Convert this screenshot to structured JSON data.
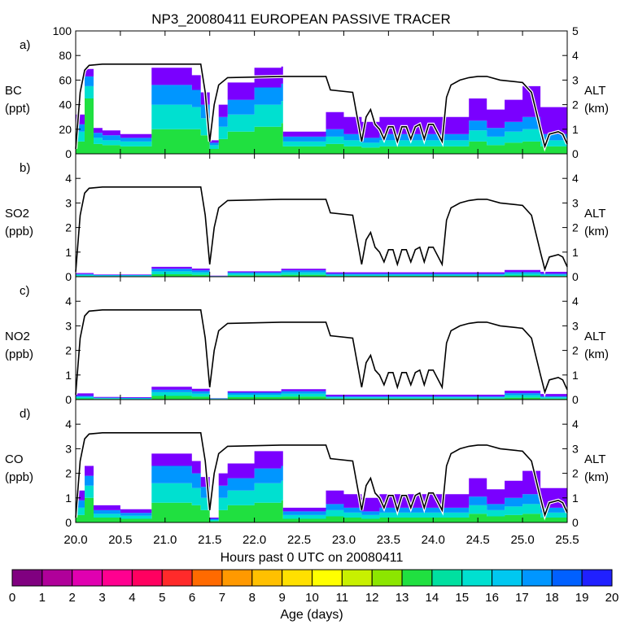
{
  "title": "NP3_20080411 EUROPEAN PASSIVE TRACER",
  "x_axis": {
    "label": "Hours past 0 UTC on 20080411",
    "range": [
      20.0,
      25.5
    ],
    "ticks": [
      "20.0",
      "20.5",
      "21.0",
      "21.5",
      "22.0",
      "22.5",
      "23.0",
      "23.5",
      "24.0",
      "24.5",
      "25.0",
      "25.5"
    ]
  },
  "right_axis": {
    "label": "ALT",
    "unit": "(km)",
    "range": [
      0,
      5
    ],
    "ticks": [
      "0",
      "1",
      "2",
      "3",
      "4",
      "5"
    ]
  },
  "colorbar": {
    "label": "Age (days)",
    "ticks": [
      "0",
      "1",
      "2",
      "3",
      "4",
      "5",
      "6",
      "7",
      "8",
      "9",
      "10",
      "11",
      "12",
      "13",
      "14",
      "15",
      "16",
      "17",
      "18",
      "19",
      "20"
    ],
    "colors": [
      "#800080",
      "#b0009a",
      "#e000b0",
      "#ff0090",
      "#ff0060",
      "#ff2a2a",
      "#ff6a00",
      "#ff9900",
      "#ffc000",
      "#ffe000",
      "#ffff00",
      "#c8f000",
      "#8ce600",
      "#20e040",
      "#00e0a0",
      "#00e0d0",
      "#00c8f0",
      "#0096ff",
      "#0060ff",
      "#2020ff",
      "#7a00ff"
    ]
  },
  "chart_data": [
    {
      "type": "area",
      "panel": "a)",
      "species": "BC",
      "unit": "(ppt)",
      "ylim": [
        0,
        100
      ],
      "yticks": [
        "0",
        "20",
        "40",
        "60",
        "80",
        "100"
      ],
      "altitude_km_series": {
        "x": [
          20.0,
          20.05,
          20.1,
          20.15,
          20.3,
          21.4,
          21.45,
          21.5,
          21.55,
          21.6,
          21.7,
          22.3,
          22.8,
          22.85,
          23.1,
          23.2,
          23.25,
          23.3,
          23.35,
          23.4,
          23.45,
          23.5,
          23.55,
          23.6,
          23.65,
          23.7,
          23.75,
          23.8,
          23.85,
          23.9,
          23.95,
          24.0,
          24.1,
          24.15,
          24.2,
          24.3,
          24.4,
          24.5,
          24.6,
          24.75,
          25.0,
          25.1,
          25.2,
          25.25,
          25.3,
          25.4,
          25.45,
          25.5
        ],
        "y": [
          0.2,
          2.5,
          3.4,
          3.6,
          3.65,
          3.65,
          2.5,
          0.5,
          2.0,
          2.8,
          3.1,
          3.15,
          3.15,
          2.6,
          2.5,
          0.5,
          1.5,
          1.8,
          1.2,
          1.0,
          0.6,
          1.1,
          1.1,
          0.5,
          1.1,
          1.1,
          0.6,
          1.1,
          1.2,
          0.6,
          1.2,
          1.2,
          0.5,
          2.3,
          2.8,
          3.0,
          3.1,
          3.15,
          3.15,
          3.0,
          2.9,
          2.5,
          1.0,
          0.3,
          0.8,
          0.9,
          0.8,
          0.4
        ]
      },
      "x": [
        20.0,
        20.1,
        20.2,
        20.3,
        20.5,
        20.8,
        20.85,
        21.3,
        21.4,
        21.5,
        21.6,
        21.7,
        22.0,
        22.3,
        22.32,
        22.7,
        22.8,
        23.0,
        23.2,
        23.4,
        23.6,
        23.8,
        24.0,
        24.2,
        24.4,
        24.6,
        24.8,
        25.0,
        25.2,
        25.5
      ],
      "series": [
        {
          "age": "0-12",
          "values": [
            10,
            45,
            8,
            7,
            6,
            6,
            20,
            20,
            15,
            4,
            12,
            18,
            22,
            25,
            6,
            6,
            8,
            6,
            5,
            6,
            6,
            6,
            6,
            6,
            10,
            7,
            9,
            10,
            6,
            6
          ]
        },
        {
          "age": "12-15",
          "values": [
            8,
            10,
            5,
            4,
            4,
            4,
            20,
            18,
            14,
            3,
            10,
            14,
            18,
            18,
            4,
            4,
            6,
            5,
            4,
            5,
            5,
            5,
            5,
            5,
            9,
            7,
            9,
            10,
            5,
            5
          ]
        },
        {
          "age": "15-17",
          "values": [
            6,
            8,
            4,
            4,
            3,
            3,
            16,
            14,
            11,
            2,
            8,
            12,
            14,
            14,
            4,
            4,
            6,
            5,
            4,
            5,
            5,
            5,
            5,
            5,
            8,
            7,
            8,
            10,
            5,
            5
          ]
        },
        {
          "age": "17-20",
          "values": [
            8,
            6,
            4,
            4,
            3,
            3,
            14,
            12,
            10,
            2,
            10,
            14,
            16,
            14,
            4,
            4,
            14,
            14,
            13,
            14,
            14,
            14,
            14,
            14,
            18,
            15,
            18,
            25,
            22,
            22
          ]
        }
      ]
    },
    {
      "type": "area",
      "panel": "b)",
      "species": "SO2",
      "unit": "(ppb)",
      "ylim": [
        0,
        5
      ],
      "yticks": [
        "0",
        "1",
        "2",
        "3",
        "4"
      ],
      "altitude_km_series": {
        "x": [
          20.0,
          20.05,
          20.1,
          20.15,
          20.3,
          21.4,
          21.45,
          21.5,
          21.55,
          21.6,
          21.7,
          22.3,
          22.8,
          22.85,
          23.1,
          23.2,
          23.25,
          23.3,
          23.35,
          23.4,
          23.45,
          23.5,
          23.55,
          23.6,
          23.65,
          23.7,
          23.75,
          23.8,
          23.85,
          23.9,
          23.95,
          24.0,
          24.1,
          24.15,
          24.2,
          24.3,
          24.4,
          24.5,
          24.6,
          24.75,
          25.0,
          25.1,
          25.2,
          25.25,
          25.3,
          25.4,
          25.45,
          25.5
        ],
        "y": [
          0.2,
          2.5,
          3.4,
          3.6,
          3.65,
          3.65,
          2.5,
          0.5,
          2.0,
          2.8,
          3.1,
          3.15,
          3.15,
          2.6,
          2.5,
          0.5,
          1.5,
          1.8,
          1.2,
          1.0,
          0.6,
          1.1,
          1.1,
          0.5,
          1.1,
          1.1,
          0.6,
          1.1,
          1.2,
          0.6,
          1.2,
          1.2,
          0.5,
          2.3,
          2.8,
          3.0,
          3.1,
          3.15,
          3.15,
          3.0,
          2.9,
          2.5,
          1.0,
          0.3,
          0.8,
          0.9,
          0.8,
          0.4
        ]
      },
      "x": [
        20.0,
        20.2,
        20.5,
        20.85,
        21.3,
        21.5,
        21.7,
        22.3,
        22.8,
        23.5,
        24.2,
        24.8,
        25.2,
        25.5
      ],
      "series": [
        {
          "age": "0-12",
          "values": [
            0.03,
            0.02,
            0.02,
            0.1,
            0.08,
            0.01,
            0.06,
            0.08,
            0.03,
            0.03,
            0.03,
            0.05,
            0.03,
            0.03
          ]
        },
        {
          "age": "12-15",
          "values": [
            0.05,
            0.03,
            0.03,
            0.12,
            0.1,
            0.01,
            0.07,
            0.1,
            0.05,
            0.05,
            0.05,
            0.08,
            0.05,
            0.05
          ]
        },
        {
          "age": "15-17",
          "values": [
            0.03,
            0.02,
            0.02,
            0.1,
            0.08,
            0.01,
            0.05,
            0.08,
            0.04,
            0.04,
            0.04,
            0.06,
            0.04,
            0.04
          ]
        },
        {
          "age": "17-20",
          "values": [
            0.04,
            0.02,
            0.02,
            0.08,
            0.07,
            0.01,
            0.04,
            0.06,
            0.06,
            0.06,
            0.06,
            0.08,
            0.08,
            0.08
          ]
        }
      ]
    },
    {
      "type": "area",
      "panel": "c)",
      "species": "NO2",
      "unit": "(ppb)",
      "ylim": [
        0,
        5
      ],
      "yticks": [
        "0",
        "1",
        "2",
        "3",
        "4"
      ],
      "altitude_km_series": {
        "x": [
          20.0,
          20.05,
          20.1,
          20.15,
          20.3,
          21.4,
          21.45,
          21.5,
          21.55,
          21.6,
          21.7,
          22.3,
          22.8,
          22.85,
          23.1,
          23.2,
          23.25,
          23.3,
          23.35,
          23.4,
          23.45,
          23.5,
          23.55,
          23.6,
          23.65,
          23.7,
          23.75,
          23.8,
          23.85,
          23.9,
          23.95,
          24.0,
          24.1,
          24.15,
          24.2,
          24.3,
          24.4,
          24.5,
          24.6,
          24.75,
          25.0,
          25.1,
          25.2,
          25.25,
          25.3,
          25.4,
          25.45,
          25.5
        ],
        "y": [
          0.2,
          2.5,
          3.4,
          3.6,
          3.65,
          3.65,
          2.5,
          0.5,
          2.0,
          2.8,
          3.1,
          3.15,
          3.15,
          2.6,
          2.5,
          0.5,
          1.5,
          1.8,
          1.2,
          1.0,
          0.6,
          1.1,
          1.1,
          0.5,
          1.1,
          1.1,
          0.6,
          1.1,
          1.2,
          0.6,
          1.2,
          1.2,
          0.5,
          2.3,
          2.8,
          3.0,
          3.1,
          3.15,
          3.15,
          3.0,
          2.9,
          2.5,
          1.0,
          0.3,
          0.8,
          0.9,
          0.8,
          0.4
        ]
      },
      "x": [
        20.0,
        20.2,
        20.5,
        20.85,
        21.3,
        21.5,
        21.7,
        22.3,
        22.8,
        23.5,
        24.2,
        24.8,
        25.2,
        25.5
      ],
      "series": [
        {
          "age": "0-12",
          "values": [
            0.05,
            0.03,
            0.02,
            0.15,
            0.12,
            0.02,
            0.1,
            0.12,
            0.04,
            0.04,
            0.04,
            0.08,
            0.04,
            0.04
          ]
        },
        {
          "age": "12-15",
          "values": [
            0.06,
            0.03,
            0.03,
            0.15,
            0.12,
            0.02,
            0.1,
            0.12,
            0.05,
            0.05,
            0.05,
            0.1,
            0.05,
            0.05
          ]
        },
        {
          "age": "15-17",
          "values": [
            0.04,
            0.02,
            0.02,
            0.1,
            0.1,
            0.01,
            0.08,
            0.1,
            0.04,
            0.04,
            0.04,
            0.08,
            0.04,
            0.04
          ]
        },
        {
          "age": "17-20",
          "values": [
            0.1,
            0.03,
            0.03,
            0.12,
            0.1,
            0.01,
            0.06,
            0.08,
            0.07,
            0.07,
            0.07,
            0.1,
            0.1,
            0.1
          ]
        }
      ]
    },
    {
      "type": "area",
      "panel": "d)",
      "species": "CO",
      "unit": "(ppb)",
      "ylim": [
        0,
        5
      ],
      "yticks": [
        "0",
        "1",
        "2",
        "3",
        "4"
      ],
      "altitude_km_series": {
        "x": [
          20.0,
          20.05,
          20.1,
          20.15,
          20.3,
          21.4,
          21.45,
          21.5,
          21.55,
          21.6,
          21.7,
          22.3,
          22.8,
          22.85,
          23.1,
          23.2,
          23.25,
          23.3,
          23.35,
          23.4,
          23.45,
          23.5,
          23.55,
          23.6,
          23.65,
          23.7,
          23.75,
          23.8,
          23.85,
          23.9,
          23.95,
          24.0,
          24.1,
          24.15,
          24.2,
          24.3,
          24.4,
          24.5,
          24.6,
          24.75,
          25.0,
          25.1,
          25.2,
          25.25,
          25.3,
          25.4,
          25.45,
          25.5
        ],
        "y": [
          0.2,
          2.5,
          3.4,
          3.6,
          3.65,
          3.65,
          2.5,
          0.5,
          2.0,
          2.8,
          3.1,
          3.15,
          3.15,
          2.6,
          2.5,
          0.5,
          1.5,
          1.8,
          1.2,
          1.0,
          0.6,
          1.1,
          1.1,
          0.5,
          1.1,
          1.1,
          0.6,
          1.1,
          1.2,
          0.6,
          1.2,
          1.2,
          0.5,
          2.3,
          2.8,
          3.0,
          3.1,
          3.15,
          3.15,
          3.0,
          2.9,
          2.5,
          1.0,
          0.3,
          0.8,
          0.9,
          0.8,
          0.4
        ]
      },
      "x": [
        20.0,
        20.1,
        20.2,
        20.3,
        20.5,
        20.8,
        20.85,
        21.3,
        21.4,
        21.5,
        21.6,
        21.7,
        22.0,
        22.3,
        22.32,
        22.7,
        22.8,
        23.0,
        23.2,
        23.4,
        23.6,
        23.8,
        24.0,
        24.2,
        24.4,
        24.6,
        24.8,
        25.0,
        25.2,
        25.5
      ],
      "series": [
        {
          "age": "0-12",
          "values": [
            0.3,
            1.0,
            0.2,
            0.2,
            0.15,
            0.15,
            0.8,
            0.7,
            0.5,
            0.05,
            0.5,
            0.7,
            0.8,
            0.9,
            0.15,
            0.15,
            0.25,
            0.2,
            0.15,
            0.2,
            0.2,
            0.2,
            0.2,
            0.2,
            0.35,
            0.25,
            0.3,
            0.35,
            0.2,
            0.2
          ]
        },
        {
          "age": "12-15",
          "values": [
            0.3,
            0.5,
            0.15,
            0.15,
            0.12,
            0.12,
            0.8,
            0.7,
            0.5,
            0.05,
            0.5,
            0.6,
            0.8,
            0.8,
            0.15,
            0.15,
            0.25,
            0.2,
            0.15,
            0.2,
            0.2,
            0.2,
            0.2,
            0.2,
            0.35,
            0.25,
            0.35,
            0.4,
            0.2,
            0.2
          ]
        },
        {
          "age": "15-17",
          "values": [
            0.3,
            0.4,
            0.15,
            0.15,
            0.12,
            0.12,
            0.7,
            0.6,
            0.45,
            0.05,
            0.5,
            0.5,
            0.6,
            0.6,
            0.15,
            0.15,
            0.25,
            0.2,
            0.15,
            0.2,
            0.2,
            0.2,
            0.2,
            0.2,
            0.35,
            0.25,
            0.35,
            0.4,
            0.2,
            0.2
          ]
        },
        {
          "age": "17-20",
          "values": [
            0.4,
            0.4,
            0.2,
            0.2,
            0.15,
            0.15,
            0.5,
            0.5,
            0.4,
            0.05,
            0.5,
            0.6,
            0.7,
            0.6,
            0.15,
            0.15,
            0.55,
            0.55,
            0.55,
            0.55,
            0.55,
            0.55,
            0.55,
            0.55,
            0.75,
            0.6,
            0.7,
            0.95,
            0.8,
            0.8
          ]
        }
      ]
    }
  ]
}
